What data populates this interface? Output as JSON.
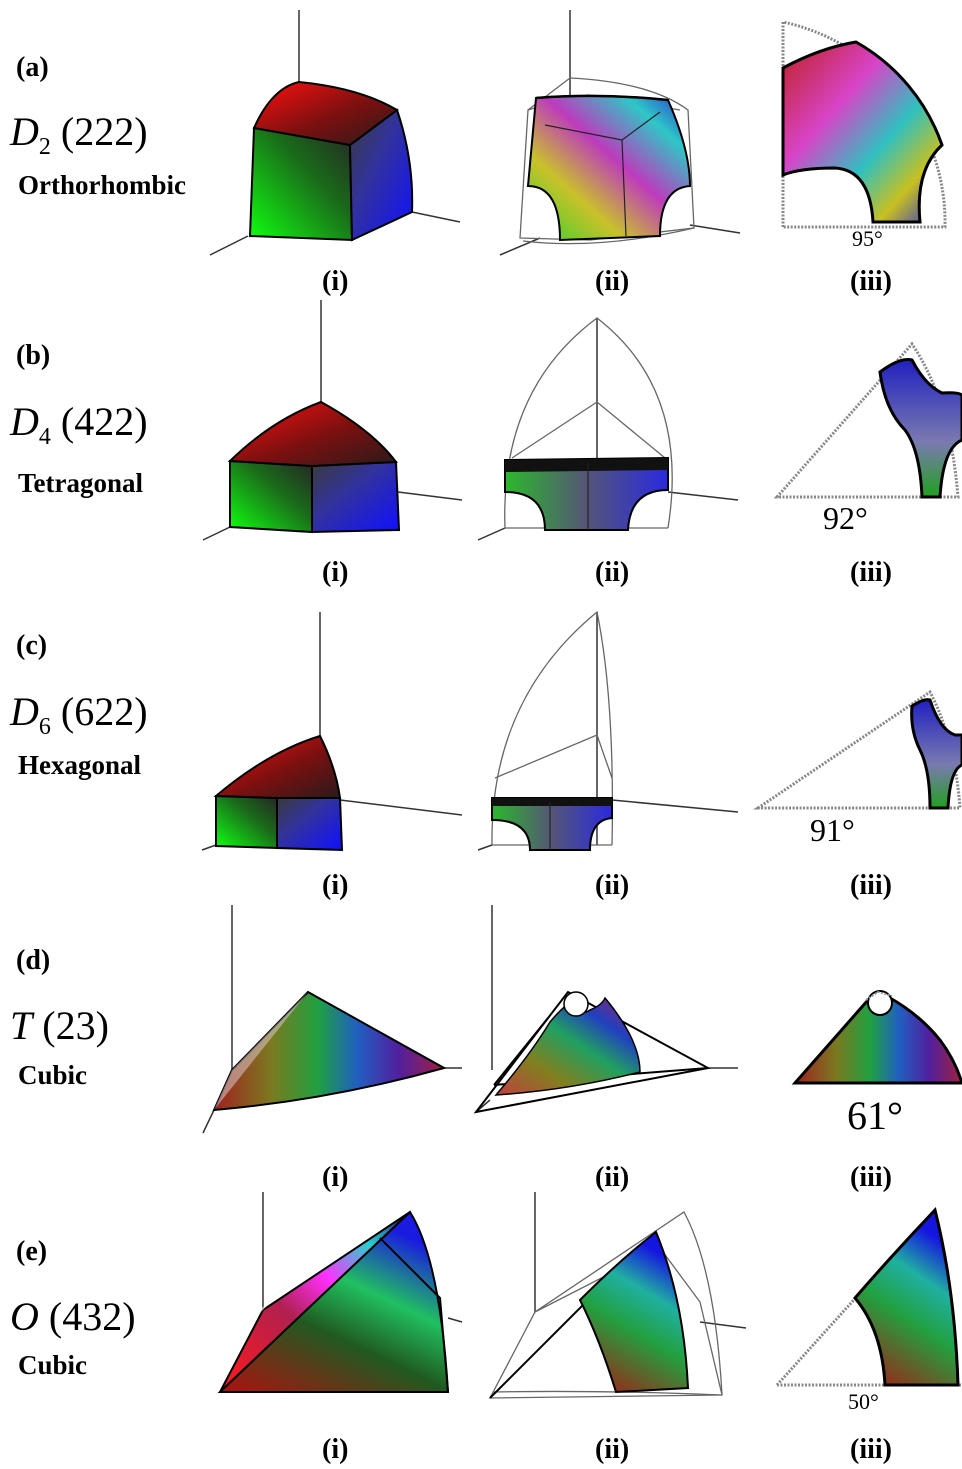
{
  "rows": [
    {
      "label": "(a)",
      "group_symbol": "D",
      "group_subscript": "2",
      "group_number": "(222)",
      "system": "Orthorhombic",
      "angle": "95°"
    },
    {
      "label": "(b)",
      "group_symbol": "D",
      "group_subscript": "4",
      "group_number": "(422)",
      "system": "Tetragonal",
      "angle": "92°"
    },
    {
      "label": "(c)",
      "group_symbol": "D",
      "group_subscript": "6",
      "group_number": "(622)",
      "system": "Hexagonal",
      "angle": "91°"
    },
    {
      "label": "(d)",
      "group_symbol": "T",
      "group_subscript": "",
      "group_number": "(23)",
      "system": "Cubic",
      "angle": "61°"
    },
    {
      "label": "(e)",
      "group_symbol": "O",
      "group_subscript": "",
      "group_number": "(432)",
      "system": "Cubic",
      "angle": "50°"
    }
  ],
  "subfigure_labels": [
    "(i)",
    "(ii)",
    "(iii)"
  ]
}
